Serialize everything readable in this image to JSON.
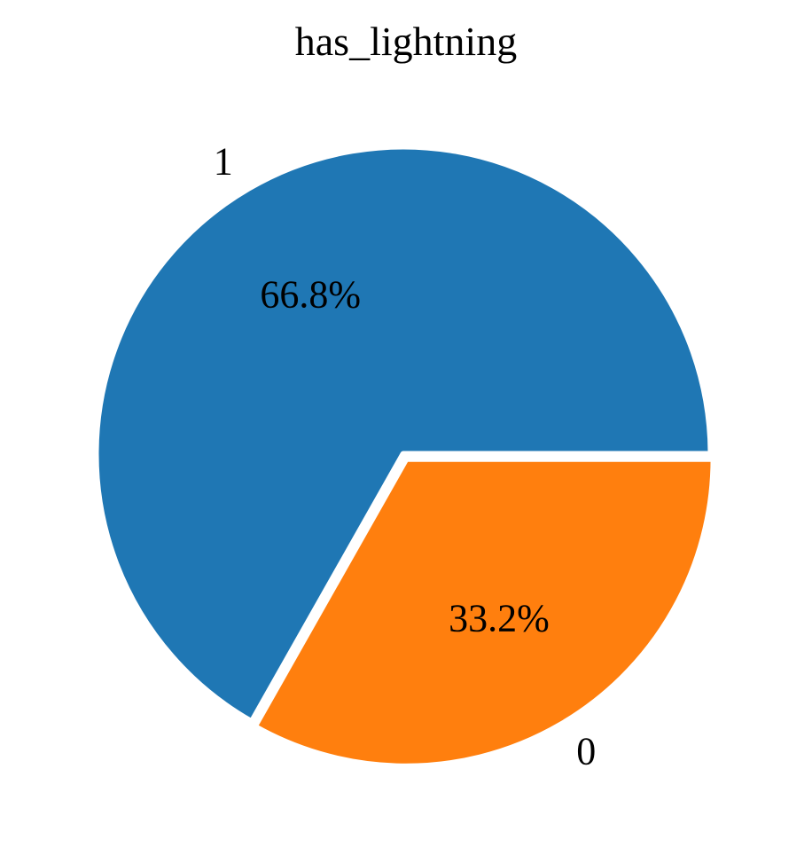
{
  "chart_data": {
    "type": "pie",
    "title": "has_lightning",
    "slices": [
      {
        "label": "1",
        "value": 66.8,
        "display": "66.8%",
        "color": "#1f77b4"
      },
      {
        "label": "0",
        "value": 33.2,
        "display": "33.2%",
        "color": "#ff7f0e"
      }
    ],
    "exploded_slice": "0",
    "slice_edge_color": "#ffffff"
  }
}
